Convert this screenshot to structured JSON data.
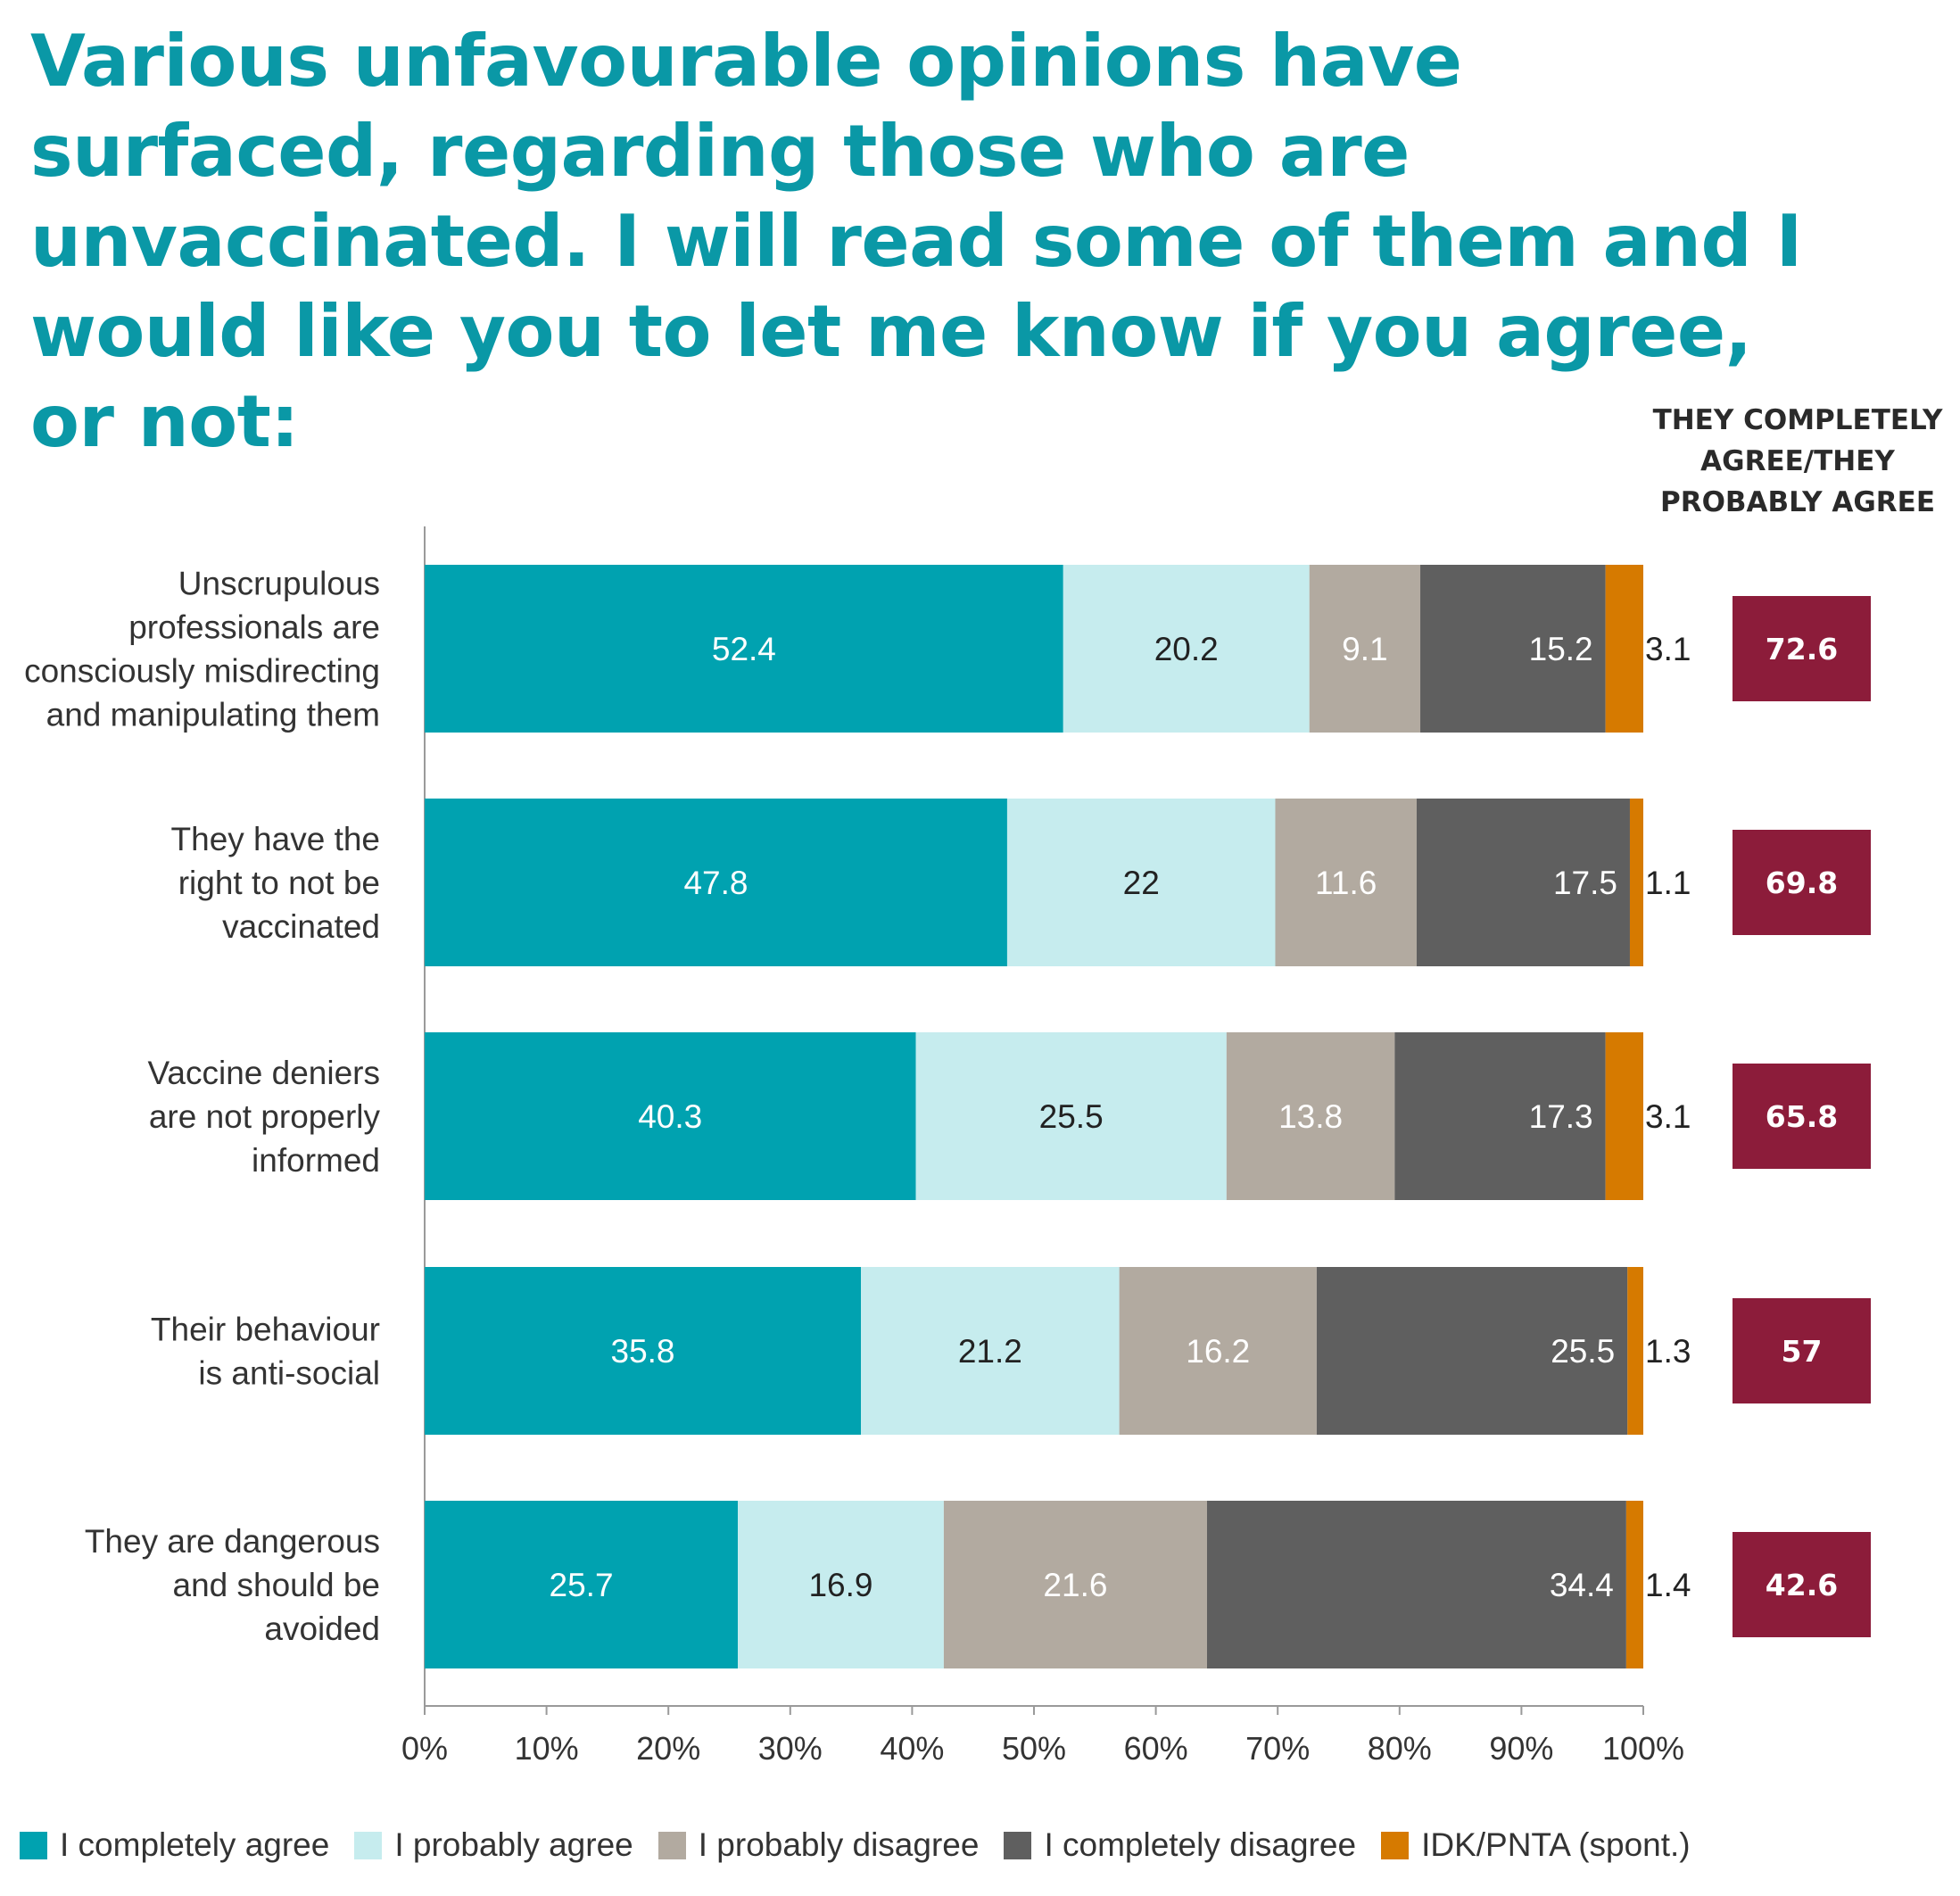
{
  "title": "Various unfavourable opinions have surfaced, regarding those who are unvaccinated. I will read some of them and I would like you to let me know if you agree, or not:",
  "side_header": "THEY COMPLETELY AGREE/THEY PROBABLY AGREE",
  "colors": {
    "title": "#0a98a6",
    "badge": "#8c1c3a",
    "series": [
      "#00a2b0",
      "#c6ecee",
      "#b2aaa0",
      "#5f5f5f",
      "#d67a00"
    ]
  },
  "chart_data": {
    "type": "bar",
    "orientation": "horizontal",
    "stacked": true,
    "categories": [
      [
        "Unscrupulous",
        "professionals are",
        "consciously misdirecting",
        "and manipulating them"
      ],
      [
        "They have the",
        "right to not be",
        "vaccinated"
      ],
      [
        "Vaccine deniers",
        "are not properly",
        "informed"
      ],
      [
        "Their behaviour",
        "is anti-social"
      ],
      [
        "They are dangerous",
        "and should be",
        "avoided"
      ]
    ],
    "series": [
      {
        "name": "I completely agree",
        "values": [
          52.4,
          47.8,
          40.3,
          35.8,
          25.7
        ]
      },
      {
        "name": "I probably agree",
        "values": [
          20.2,
          22,
          25.5,
          21.2,
          16.9
        ]
      },
      {
        "name": "I probably disagree",
        "values": [
          9.1,
          11.6,
          13.8,
          16.2,
          21.6
        ]
      },
      {
        "name": "I completely disagree",
        "values": [
          15.2,
          17.5,
          17.3,
          25.5,
          34.4
        ]
      },
      {
        "name": "IDK/PNTA (spont.)",
        "values": [
          3.1,
          1.1,
          3.1,
          1.3,
          1.4
        ]
      }
    ],
    "value_labels": [
      [
        "52.4",
        "20.2",
        "9.1",
        "15.2",
        "3.1"
      ],
      [
        "47.8",
        "22",
        "11.6",
        "17.5",
        "1.1"
      ],
      [
        "40.3",
        "25.5",
        "13.8",
        "17.3",
        "3.1"
      ],
      [
        "35.8",
        "21.2",
        "16.2",
        "25.5",
        "1.3"
      ],
      [
        "25.7",
        "16.9",
        "21.6",
        "34.4",
        "1.4"
      ]
    ],
    "agree_totals": [
      "72.6",
      "69.8",
      "65.8",
      "57",
      "42.6"
    ],
    "xlim": [
      0,
      100
    ],
    "x_ticks": [
      "0%",
      "10%",
      "20%",
      "30%",
      "40%",
      "50%",
      "60%",
      "70%",
      "80%",
      "90%",
      "100%"
    ],
    "grid": false,
    "legend_position": "bottom"
  }
}
